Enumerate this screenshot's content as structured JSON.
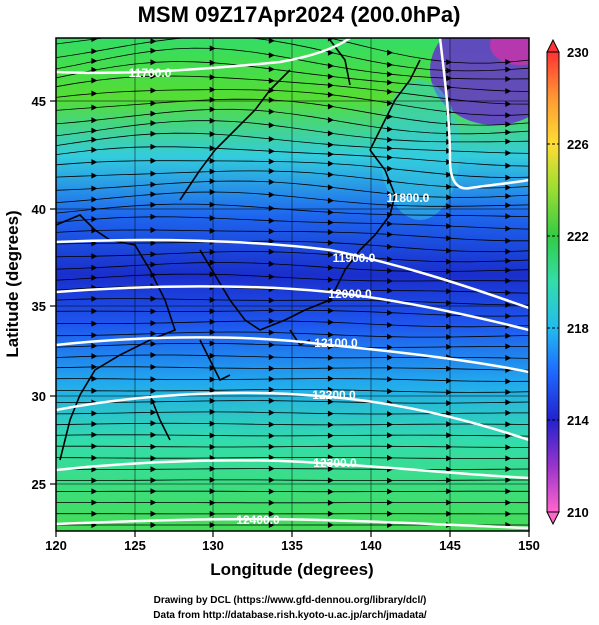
{
  "title": "MSM 09Z17Apr2024 (200.0hPa)",
  "x_axis": {
    "label": "Longitude (degrees)",
    "ticks": [
      "120",
      "125",
      "130",
      "135",
      "140",
      "145",
      "150"
    ],
    "range": [
      120,
      150
    ]
  },
  "y_axis": {
    "label": "Latitude  (degrees)",
    "ticks": [
      "25",
      "30",
      "35",
      "40",
      "45"
    ],
    "range": [
      22.4,
      47.6
    ]
  },
  "colorbar": {
    "ticks": [
      "230",
      "226",
      "222",
      "218",
      "214",
      "210"
    ],
    "range": [
      210,
      230
    ],
    "colors": [
      "#ff66cc",
      "#9933cc",
      "#2222cc",
      "#1e90ff",
      "#33dddd",
      "#33cc66",
      "#99dd33",
      "#ffdd33",
      "#ff9933",
      "#ff3333"
    ]
  },
  "contours": [
    {
      "label": "11700.0"
    },
    {
      "label": "11800.0"
    },
    {
      "label": "11900.0"
    },
    {
      "label": "12000.0"
    },
    {
      "label": "12100.0"
    },
    {
      "label": "12200.0"
    },
    {
      "label": "12300.0"
    },
    {
      "label": "12400.0"
    }
  ],
  "credits": [
    "Drawing by DCL (https://www.gfd-dennou.org/library/dcl/)",
    "Data from http://database.rish.kyoto-u.ac.jp/arch/jmadata/"
  ],
  "chart_data": {
    "type": "heatmap",
    "title": "MSM 09Z17Apr2024 (200.0hPa)",
    "xlabel": "Longitude (degrees)",
    "ylabel": "Latitude  (degrees)",
    "xlim": [
      120,
      150
    ],
    "ylim": [
      22.4,
      47.6
    ],
    "colorbar_range": [
      210,
      230
    ],
    "colorbar_ticks": [
      210,
      214,
      218,
      222,
      226,
      230
    ],
    "contour_levels": [
      11700,
      11800,
      11900,
      12000,
      12100,
      12200,
      12300,
      12400
    ],
    "grid": true
  }
}
